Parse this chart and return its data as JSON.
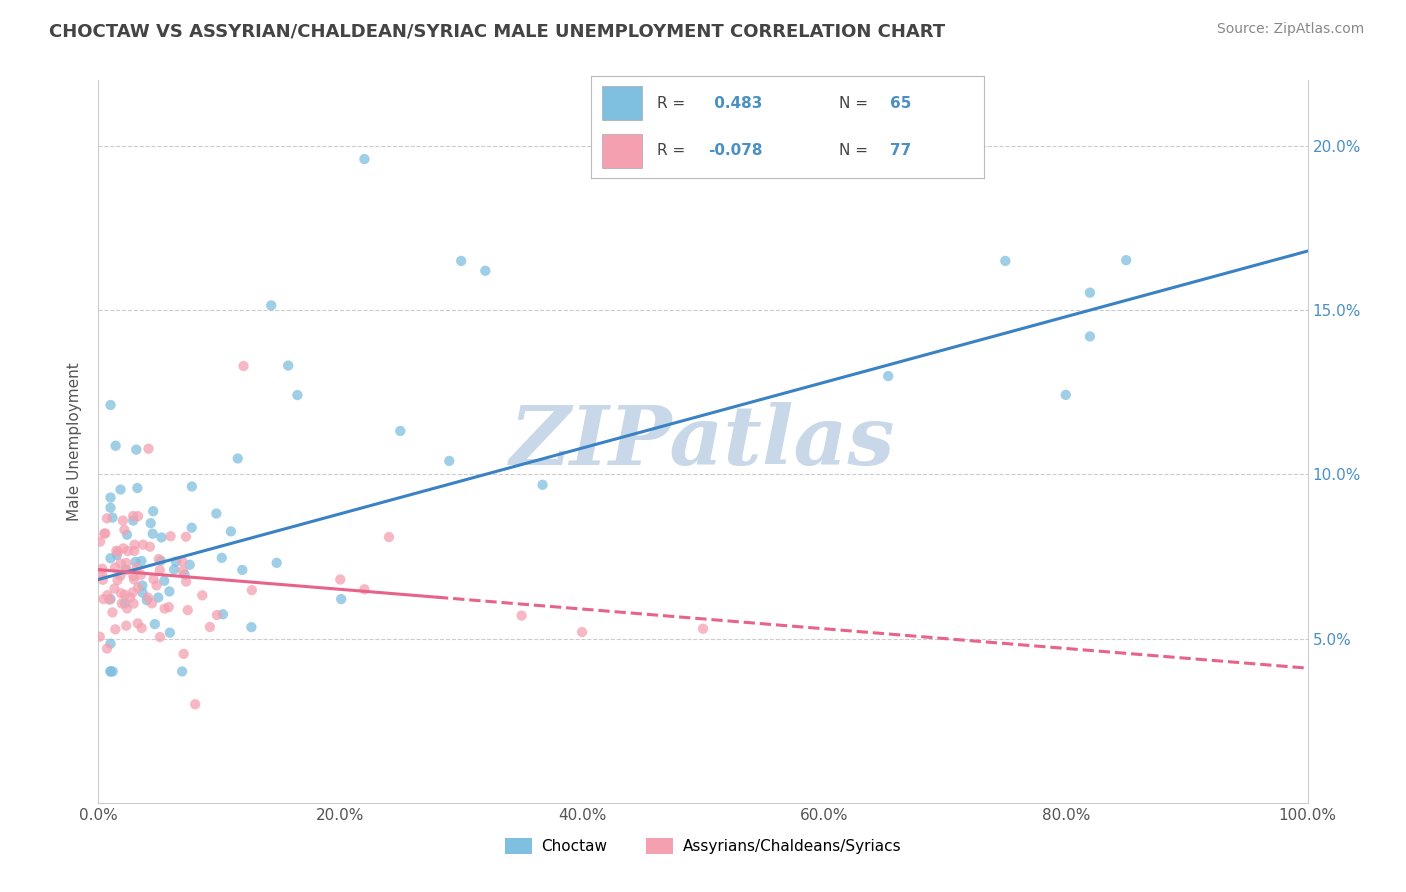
{
  "title": "CHOCTAW VS ASSYRIAN/CHALDEAN/SYRIAC MALE UNEMPLOYMENT CORRELATION CHART",
  "source": "Source: ZipAtlas.com",
  "ylabel": "Male Unemployment",
  "xlim": [
    0,
    1.0
  ],
  "ylim": [
    0,
    0.22
  ],
  "xtick_labels": [
    "0.0%",
    "20.0%",
    "40.0%",
    "60.0%",
    "80.0%",
    "100.0%"
  ],
  "xtick_vals": [
    0.0,
    0.2,
    0.4,
    0.6,
    0.8,
    1.0
  ],
  "ytick_labels": [
    "5.0%",
    "10.0%",
    "15.0%",
    "20.0%"
  ],
  "ytick_vals": [
    0.05,
    0.1,
    0.15,
    0.2
  ],
  "choctaw_color": "#7fbfdf",
  "assyrian_color": "#f4a0b0",
  "choctaw_line_color": "#3a82c4",
  "assyrian_line_color": "#e8638a",
  "choctaw_R": 0.483,
  "choctaw_N": 65,
  "assyrian_R": -0.078,
  "assyrian_N": 77,
  "watermark": "ZIPatlas",
  "watermark_color": "#c8d8e8",
  "legend_label_choctaw": "Choctaw",
  "legend_label_assyrian": "Assyrians/Chaldeans/Syriacs",
  "background_color": "#ffffff",
  "grid_color": "#cccccc",
  "right_tick_color": "#4a90c4",
  "title_color": "#444444",
  "source_color": "#888888"
}
